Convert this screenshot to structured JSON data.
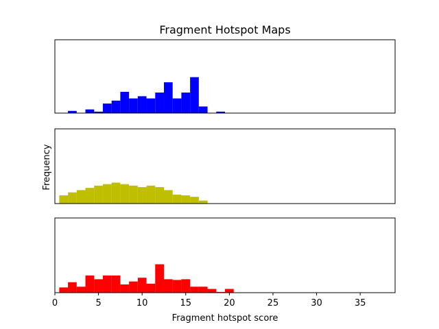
{
  "chart_data": {
    "type": "bar",
    "title": "Fragment Hotspot Maps",
    "xlabel": "Fragment hotspot score",
    "ylabel": "Frequency",
    "xlim": [
      0,
      39
    ],
    "xticks": [
      0,
      5,
      10,
      15,
      20,
      25,
      30,
      35
    ],
    "bin_width": 1,
    "y_ticks_shown": false,
    "panels": [
      {
        "color": "#0000ff",
        "ylim": [
          0,
          10
        ],
        "bin_starts": [
          1.5,
          3.5,
          4.5,
          5.5,
          6.5,
          7.5,
          8.5,
          9.5,
          10.5,
          11.5,
          12.5,
          13.5,
          14.5,
          15.5,
          16.5,
          18.5
        ],
        "values": [
          0.3,
          0.5,
          0.2,
          1.3,
          1.7,
          2.9,
          2.0,
          2.3,
          2.0,
          2.8,
          4.2,
          2.0,
          2.8,
          4.9,
          0.9,
          0.2
        ]
      },
      {
        "color": "#bfbf00",
        "ylim": [
          0,
          10
        ],
        "bin_starts": [
          0.5,
          1.5,
          2.5,
          3.5,
          4.5,
          5.5,
          6.5,
          7.5,
          8.5,
          9.5,
          10.5,
          11.5,
          12.5,
          13.5,
          14.5,
          15.5,
          16.5
        ],
        "values": [
          1.1,
          1.5,
          1.8,
          2.1,
          2.4,
          2.6,
          2.8,
          2.6,
          2.4,
          2.2,
          2.4,
          2.2,
          1.8,
          1.2,
          1.1,
          0.9,
          0.4
        ]
      },
      {
        "color": "#ff0000",
        "ylim": [
          0,
          10
        ],
        "bin_starts": [
          0.5,
          1.5,
          2.5,
          3.5,
          4.5,
          5.5,
          6.5,
          7.5,
          8.5,
          9.5,
          10.5,
          11.5,
          12.5,
          13.5,
          14.5,
          15.5,
          16.5,
          17.5,
          18.5,
          19.5
        ],
        "values": [
          0.7,
          1.4,
          0.8,
          2.3,
          1.8,
          2.3,
          2.3,
          1.1,
          1.5,
          2.0,
          1.2,
          3.8,
          1.8,
          1.7,
          1.8,
          0.8,
          0.8,
          0.5,
          0.1,
          0.5
        ]
      }
    ]
  }
}
